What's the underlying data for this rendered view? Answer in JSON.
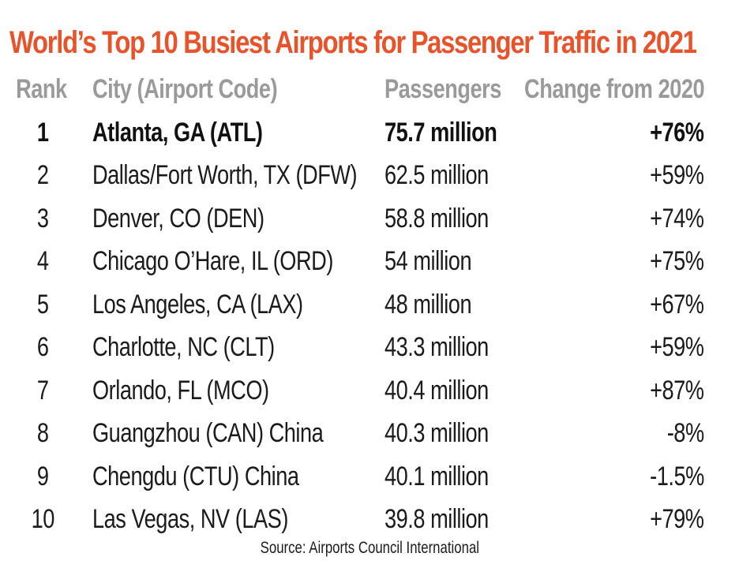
{
  "title": "World’s Top 10 Busiest Airports for Passenger Traffic in 2021",
  "headers": {
    "rank": "Rank",
    "city": "City (Airport Code)",
    "passengers": "Passengers",
    "change": "Change from 2020"
  },
  "source": "Source: Airports Council International",
  "colors": {
    "title": "#e8532b",
    "header": "#9a9a9a",
    "text": "#1b1b1b"
  },
  "chart_data": {
    "type": "table",
    "title": "World’s Top 10 Busiest Airports for Passenger Traffic in 2021",
    "columns": [
      "Rank",
      "City (Airport Code)",
      "Passengers",
      "Change from 2020"
    ],
    "rows": [
      {
        "rank": "1",
        "city": "Atlanta, GA (ATL)",
        "passengers": "75.7 million",
        "change": "+76%"
      },
      {
        "rank": "2",
        "city": "Dallas/Fort Worth, TX (DFW)",
        "passengers": "62.5 million",
        "change": "+59%"
      },
      {
        "rank": "3",
        "city": "Denver, CO (DEN)",
        "passengers": "58.8 million",
        "change": "+74%"
      },
      {
        "rank": "4",
        "city": "Chicago O’Hare, IL (ORD)",
        "passengers": "54 million",
        "change": "+75%"
      },
      {
        "rank": "5",
        "city": "Los Angeles, CA (LAX)",
        "passengers": "48 million",
        "change": "+67%"
      },
      {
        "rank": "6",
        "city": "Charlotte, NC (CLT)",
        "passengers": "43.3 million",
        "change": "+59%"
      },
      {
        "rank": "7",
        "city": "Orlando, FL (MCO)",
        "passengers": "40.4 million",
        "change": "+87%"
      },
      {
        "rank": "8",
        "city": "Guangzhou (CAN) China",
        "passengers": "40.3 million",
        "change": "-8%"
      },
      {
        "rank": "9",
        "city": "Chengdu (CTU) China",
        "passengers": "40.1 million",
        "change": "-1.5%"
      },
      {
        "rank": "10",
        "city": "Las Vegas, NV (LAS)",
        "passengers": "39.8 million",
        "change": "+79%"
      }
    ]
  }
}
